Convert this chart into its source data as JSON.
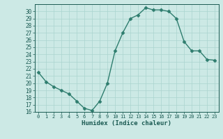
{
  "x": [
    0,
    1,
    2,
    3,
    4,
    5,
    6,
    7,
    8,
    9,
    10,
    11,
    12,
    13,
    14,
    15,
    16,
    17,
    18,
    19,
    20,
    21,
    22,
    23
  ],
  "y": [
    21.5,
    20.2,
    19.5,
    19.0,
    18.5,
    17.5,
    16.5,
    16.2,
    17.5,
    20.0,
    24.5,
    27.0,
    29.0,
    29.5,
    30.5,
    30.2,
    30.2,
    30.0,
    29.0,
    25.8,
    24.5,
    24.5,
    23.3,
    23.2
  ],
  "xlabel": "Humidex (Indice chaleur)",
  "ylim": [
    16,
    31
  ],
  "xlim": [
    -0.5,
    23.5
  ],
  "yticks": [
    16,
    17,
    18,
    19,
    20,
    21,
    22,
    23,
    24,
    25,
    26,
    27,
    28,
    29,
    30
  ],
  "xticks": [
    0,
    1,
    2,
    3,
    4,
    5,
    6,
    7,
    8,
    9,
    10,
    11,
    12,
    13,
    14,
    15,
    16,
    17,
    18,
    19,
    20,
    21,
    22,
    23
  ],
  "line_color": "#2e7d6e",
  "marker_color": "#2e7d6e",
  "bg_color": "#cce9e5",
  "grid_color": "#aad4cf",
  "text_color": "#1a5a52"
}
